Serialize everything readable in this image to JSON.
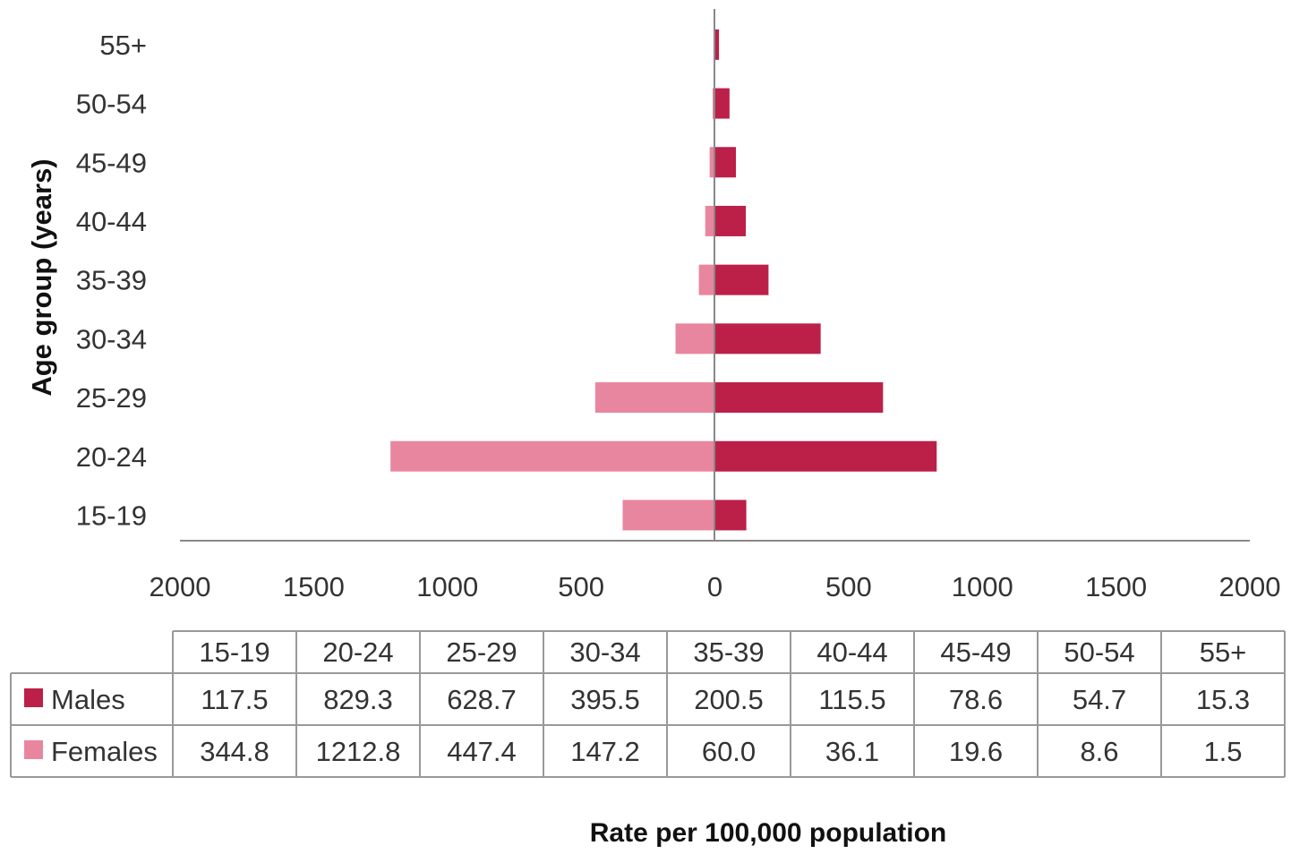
{
  "chart_data": {
    "type": "bar",
    "orientation": "horizontal-butterfly",
    "categories": [
      "15-19",
      "20-24",
      "25-29",
      "30-34",
      "35-39",
      "40-44",
      "45-49",
      "50-54",
      "55+"
    ],
    "series": [
      {
        "name": "Males",
        "values": [
          117.5,
          829.3,
          628.7,
          395.5,
          200.5,
          115.5,
          78.6,
          54.7,
          15.3
        ],
        "color": "#bc1f48",
        "side": "right"
      },
      {
        "name": "Females",
        "values": [
          344.8,
          1212.8,
          447.4,
          147.2,
          60.0,
          36.1,
          19.6,
          8.6,
          1.5
        ],
        "color": "#e9869f",
        "side": "left"
      }
    ],
    "xlim": [
      -2000,
      2000
    ],
    "x_ticks": [
      -2000,
      -1500,
      -1000,
      -500,
      0,
      500,
      1000,
      1500,
      2000
    ],
    "x_tick_labels": [
      "2000",
      "1500",
      "1000",
      "500",
      "0",
      "500",
      "1000",
      "1500",
      "2000"
    ],
    "xlabel": "Rate per 100,000 population",
    "ylabel": "Age group (years)",
    "grid": false,
    "legend": "data-table",
    "data_table": {
      "header": [
        "15-19",
        "20-24",
        "25-29",
        "30-34",
        "35-39",
        "40-44",
        "45-49",
        "50-54",
        "55+"
      ],
      "rows": [
        {
          "label": "Males",
          "cells": [
            "117.5",
            "829.3",
            "628.7",
            "395.5",
            "200.5",
            "115.5",
            "78.6",
            "54.7",
            "15.3"
          ]
        },
        {
          "label": "Females",
          "cells": [
            "344.8",
            "1212.8",
            "447.4",
            "147.2",
            "60.0",
            "36.1",
            "19.6",
            "8.6",
            "1.5"
          ]
        }
      ]
    }
  },
  "colors": {
    "axis": "#888888",
    "table_border": "#999999"
  }
}
